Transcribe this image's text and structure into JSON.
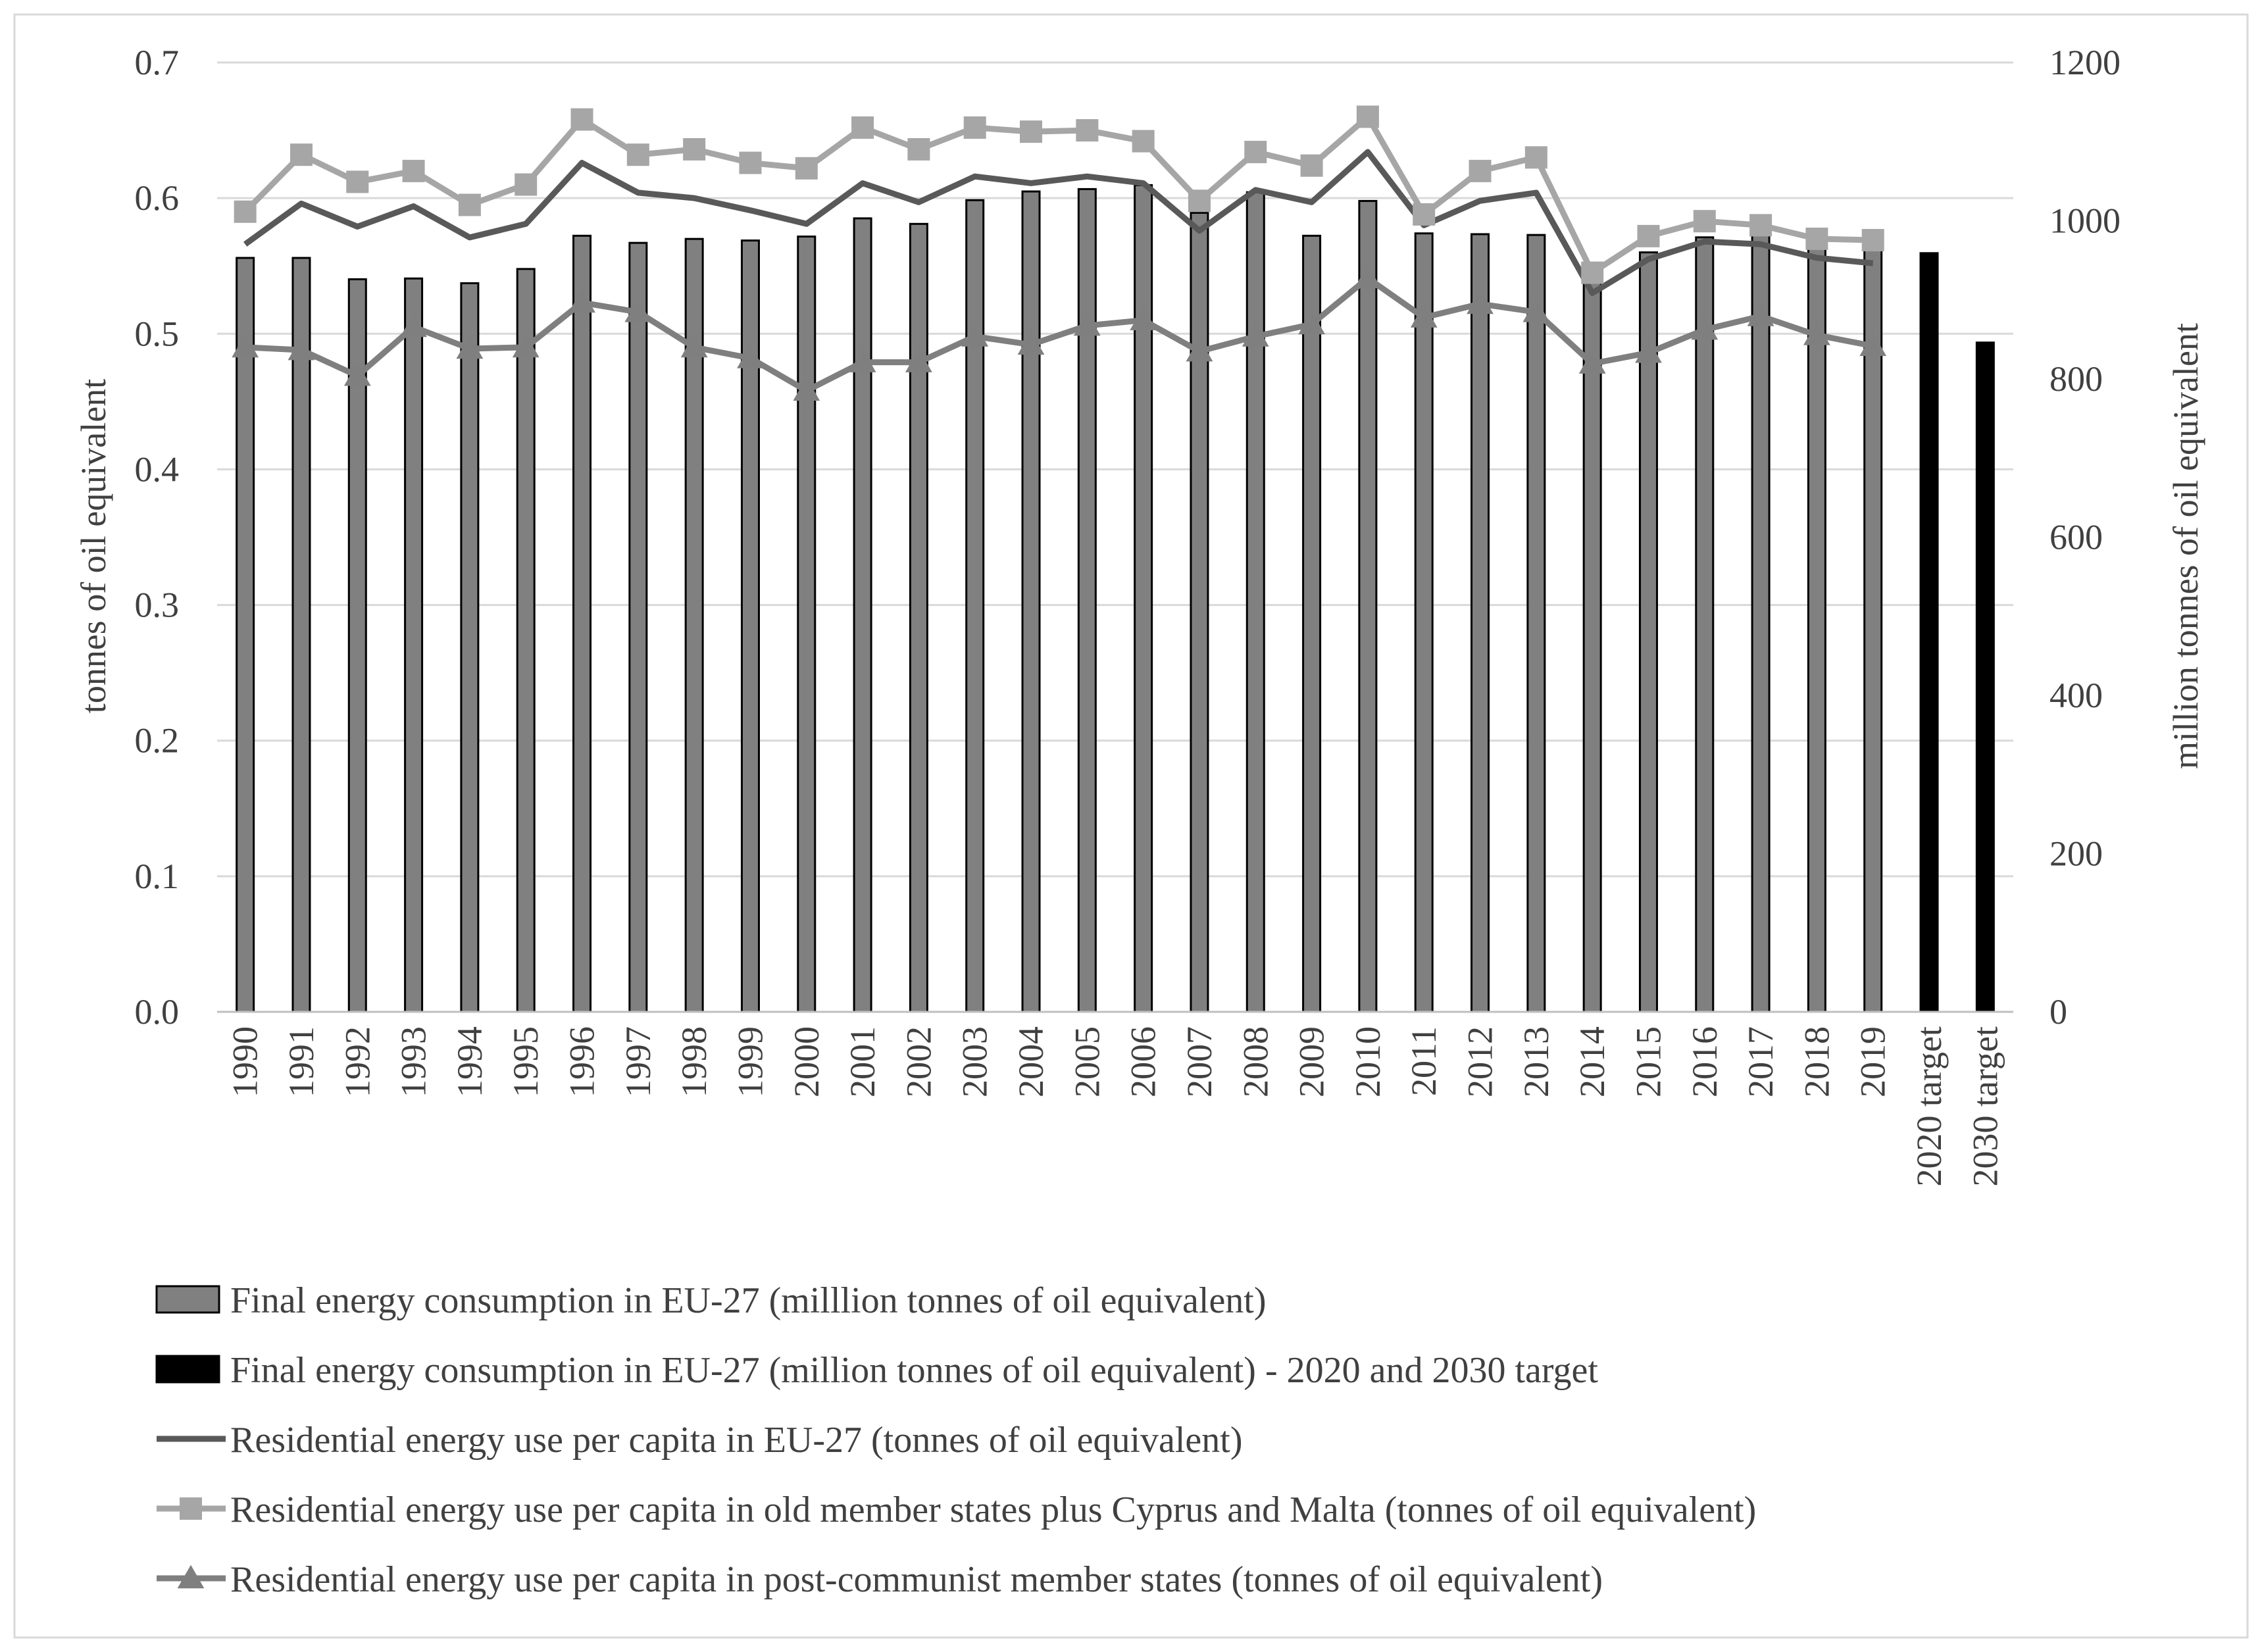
{
  "chart_data": {
    "type": "bar",
    "categories": [
      "1990",
      "1991",
      "1992",
      "1993",
      "1994",
      "1995",
      "1996",
      "1997",
      "1998",
      "1999",
      "2000",
      "2001",
      "2002",
      "2003",
      "2004",
      "2005",
      "2006",
      "2007",
      "2008",
      "2009",
      "2010",
      "2011",
      "2012",
      "2013",
      "2014",
      "2015",
      "2016",
      "2017",
      "2018",
      "2019",
      "2020 target",
      "2030 target"
    ],
    "ylabel": "tonnes of oil equivalent",
    "y2label": "million tonnes of oil equivalent",
    "ylim": [
      0,
      0.7
    ],
    "y2lim": [
      0,
      1200
    ],
    "yticks": [
      "0.0",
      "0.1",
      "0.2",
      "0.3",
      "0.4",
      "0.5",
      "0.6",
      "0.7"
    ],
    "y2ticks": [
      "0",
      "200",
      "400",
      "600",
      "800",
      "1000",
      "1200"
    ],
    "grid": true,
    "legend_position": "bottom",
    "series": [
      {
        "name": "Final energy consumption in EU-27 (milllion tonnes of oil equivalent)",
        "kind": "bar",
        "axis": "right",
        "color": "#808080",
        "values": [
          953,
          953,
          926,
          927,
          921,
          939,
          981,
          972,
          977,
          975,
          980,
          1003,
          996,
          1026,
          1037,
          1040,
          1045,
          1010,
          1036,
          981,
          1025,
          984,
          983,
          982,
          930,
          960,
          979,
          990,
          990,
          982,
          null,
          null
        ]
      },
      {
        "name": "Final energy consumption in EU-27 (million tonnes of oil equivalent) - 2020 and 2030 target",
        "kind": "bar",
        "axis": "right",
        "color": "#000000",
        "values": [
          null,
          null,
          null,
          null,
          null,
          null,
          null,
          null,
          null,
          null,
          null,
          null,
          null,
          null,
          null,
          null,
          null,
          null,
          null,
          null,
          null,
          null,
          null,
          null,
          null,
          null,
          null,
          null,
          null,
          null,
          959,
          846
        ]
      },
      {
        "name": "Residential energy use per capita in EU-27 (tonnes of oil equivalent)",
        "kind": "line",
        "axis": "left",
        "marker": "none",
        "color": "#595959",
        "values": [
          0.566,
          0.596,
          0.579,
          0.594,
          0.571,
          0.581,
          0.626,
          0.604,
          0.6,
          0.591,
          0.581,
          0.611,
          0.597,
          0.616,
          0.611,
          0.616,
          0.611,
          0.576,
          0.606,
          0.597,
          0.634,
          0.58,
          0.598,
          0.604,
          0.53,
          0.555,
          0.568,
          0.566,
          0.556,
          0.552,
          null,
          null
        ]
      },
      {
        "name": "Residential energy use per capita in old member states plus Cyprus and Malta (tonnes of oil equivalent)",
        "kind": "line",
        "axis": "left",
        "marker": "square",
        "color": "#a6a6a6",
        "values": [
          0.59,
          0.632,
          0.612,
          0.62,
          0.595,
          0.61,
          0.658,
          0.632,
          0.636,
          0.626,
          0.622,
          0.652,
          0.636,
          0.652,
          0.649,
          0.65,
          0.642,
          0.598,
          0.634,
          0.624,
          0.66,
          0.588,
          0.62,
          0.63,
          0.545,
          0.572,
          0.583,
          0.58,
          0.57,
          0.569,
          null,
          null
        ]
      },
      {
        "name": "Residential energy use per capita in post-communist member states (tonnes of oil equivalent)",
        "kind": "line",
        "axis": "left",
        "marker": "triangle",
        "color": "#7f7f7f",
        "values": [
          0.49,
          0.488,
          0.469,
          0.505,
          0.489,
          0.49,
          0.523,
          0.516,
          0.49,
          0.482,
          0.458,
          0.479,
          0.479,
          0.498,
          0.492,
          0.506,
          0.51,
          0.487,
          0.498,
          0.507,
          0.541,
          0.512,
          0.522,
          0.516,
          0.478,
          0.486,
          0.503,
          0.513,
          0.499,
          0.491,
          null,
          null
        ]
      }
    ]
  }
}
